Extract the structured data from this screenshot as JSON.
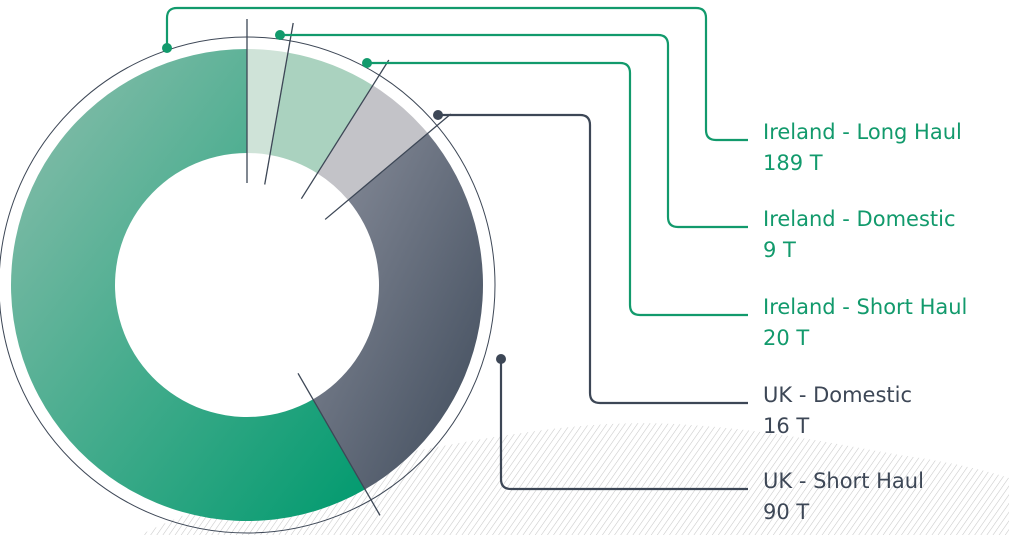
{
  "chart_data": {
    "type": "pie",
    "variant": "donut",
    "grid": false,
    "legend_placement": "right",
    "slices": [
      {
        "label": "Ireland - Long Haul",
        "value": 189,
        "value_text": "189 T",
        "color": "#009a6e"
      },
      {
        "label": "UK - Short Haul",
        "value": 90,
        "value_text": "90 T",
        "color": "#465263"
      },
      {
        "label": "UK - Domestic",
        "value": 16,
        "value_text": "16 T",
        "color": "#c3c3c8"
      },
      {
        "label": "Ireland - Short Haul",
        "value": 20,
        "value_text": "20 T",
        "color": "#aad2bf"
      },
      {
        "label": "Ireland - Domestic",
        "value": 9,
        "value_text": "9 T",
        "color": "#cfe3d8"
      }
    ],
    "legend_order": [
      "Ireland - Long Haul",
      "Ireland - Domestic",
      "Ireland - Short Haul",
      "UK - Domestic",
      "UK - Short Haul"
    ]
  },
  "colors": {
    "ireland_text": "#129a6c",
    "uk_text": "#3d4756",
    "ireland_line": "#129a6c",
    "uk_line": "#3d4756"
  }
}
